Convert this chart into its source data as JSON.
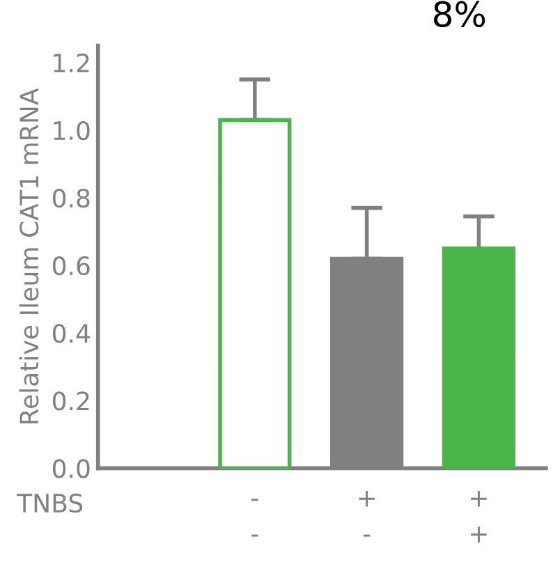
{
  "chart_data": {
    "type": "bar",
    "ylabel": "Relative Ileum CAT1 mRNA",
    "categories": [
      "-\n-",
      "+\n-",
      "+\n+"
    ],
    "values": [
      1.03,
      0.62,
      0.65
    ],
    "errors": [
      [
        1.03,
        1.15
      ],
      [
        0.62,
        0.77
      ],
      [
        0.65,
        0.745
      ]
    ],
    "colors": [
      "#4ab548",
      "#808083",
      "#4ab548"
    ],
    "ylim": [
      0,
      1.25
    ],
    "yticks": [
      {
        "value": 0,
        "label": "0.0"
      },
      0.2,
      0.4,
      0.6,
      0.8,
      {
        "value": 1,
        "label": "1.0"
      },
      1.2
    ],
    "annotations": [
      "8%",
      "TNBS"
    ],
    "grid": false,
    "legend": false
  }
}
